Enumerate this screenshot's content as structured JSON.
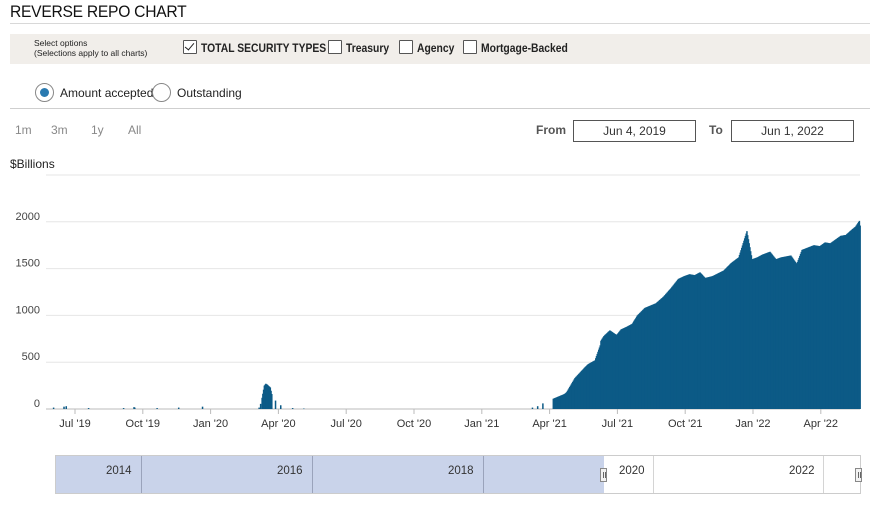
{
  "title": "REVERSE REPO CHART",
  "options": {
    "hint_line1": "Select options",
    "hint_line2": "(Selections apply to all charts)",
    "checkboxes": [
      {
        "label": "TOTAL SECURITY TYPES",
        "checked": true
      },
      {
        "label": "Treasury",
        "checked": false
      },
      {
        "label": "Agency",
        "checked": false
      },
      {
        "label": "Mortgage-Backed",
        "checked": false
      }
    ]
  },
  "radios": [
    {
      "label": "Amount accepted",
      "selected": true
    },
    {
      "label": "Outstanding",
      "selected": false
    }
  ],
  "range_buttons": [
    "1m",
    "3m",
    "1y",
    "All"
  ],
  "date_range": {
    "from_label": "From",
    "from_value": "Jun 4, 2019",
    "to_label": "To",
    "to_value": "Jun 1, 2022"
  },
  "navigator": {
    "labels": [
      "2014",
      "2016",
      "2018",
      "2020",
      "2022"
    ]
  },
  "colors": {
    "bar": "#0c5a86",
    "accent": "#2a7ab0",
    "navigator_selection": "#c9d3ea"
  },
  "chart_data": {
    "type": "bar",
    "unit_label": "$Billions",
    "x_axis": {
      "start": "2019-06-04",
      "end": "2022-06-01",
      "tick_labels": [
        "Jul '19",
        "Oct '19",
        "Jan '20",
        "Apr '20",
        "Jul '20",
        "Oct '20",
        "Jan '21",
        "Apr '21",
        "Jul '21",
        "Oct '21",
        "Jan '22",
        "Apr '22"
      ]
    },
    "ylim": [
      0,
      2500
    ],
    "yticks": [
      0,
      500,
      1000,
      1500,
      2000
    ],
    "grid": true,
    "series": [
      {
        "x": [
          "2019-06-14",
          "2019-06-28",
          "2019-07-01",
          "2019-07-31",
          "2019-09-16",
          "2019-09-30",
          "2019-10-01",
          "2019-10-31",
          "2019-11-29",
          "2019-12-31",
          "2020-03-16",
          "2020-03-18",
          "2020-03-20",
          "2020-03-23",
          "2020-03-25",
          "2020-03-27",
          "2020-03-31",
          "2020-04-02",
          "2020-04-07",
          "2020-04-14",
          "2020-04-30",
          "2020-05-15",
          "2021-03-18",
          "2021-03-25",
          "2021-04-01",
          "2021-04-15",
          "2021-04-30",
          "2021-05-03",
          "2021-05-14",
          "2021-05-28",
          "2021-06-01",
          "2021-06-10",
          "2021-06-17",
          "2021-06-18",
          "2021-06-22",
          "2021-06-30",
          "2021-07-09",
          "2021-07-15",
          "2021-07-23",
          "2021-07-30",
          "2021-08-06",
          "2021-08-16",
          "2021-08-31",
          "2021-09-10",
          "2021-09-20",
          "2021-09-30",
          "2021-10-08",
          "2021-10-15",
          "2021-10-22",
          "2021-10-29",
          "2021-11-05",
          "2021-11-15",
          "2021-11-30",
          "2021-12-10",
          "2021-12-20",
          "2021-12-31",
          "2022-01-07",
          "2022-01-14",
          "2022-01-21",
          "2022-01-31",
          "2022-02-08",
          "2022-02-15",
          "2022-02-28",
          "2022-03-08",
          "2022-03-15",
          "2022-03-31",
          "2022-04-08",
          "2022-04-15",
          "2022-04-22",
          "2022-04-29",
          "2022-05-06",
          "2022-05-13",
          "2022-05-20",
          "2022-05-26",
          "2022-05-31",
          "2022-06-01"
        ],
        "y": [
          15,
          25,
          30,
          10,
          10,
          20,
          15,
          10,
          15,
          25,
          15,
          55,
          120,
          250,
          270,
          260,
          230,
          160,
          90,
          40,
          10,
          5,
          15,
          30,
          60,
          110,
          160,
          180,
          330,
          450,
          480,
          520,
          680,
          730,
          780,
          840,
          790,
          850,
          880,
          910,
          1000,
          1080,
          1130,
          1200,
          1290,
          1390,
          1420,
          1440,
          1430,
          1460,
          1400,
          1420,
          1480,
          1560,
          1620,
          1900,
          1600,
          1620,
          1650,
          1680,
          1600,
          1620,
          1640,
          1550,
          1700,
          1750,
          1740,
          1780,
          1770,
          1810,
          1850,
          1860,
          1910,
          1950,
          2010,
          1960
        ]
      }
    ]
  }
}
